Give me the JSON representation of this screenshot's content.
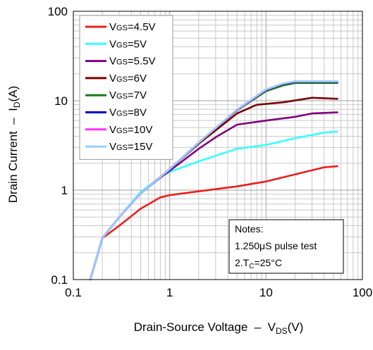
{
  "chart_data": {
    "type": "line",
    "xscale": "log",
    "yscale": "log",
    "xlim": [
      0.1,
      100
    ],
    "ylim": [
      0.1,
      100
    ],
    "grid": true,
    "legend_position": "top-left",
    "xlabel": {
      "main": "Drain-Source Voltage  –  V",
      "sub": "DS",
      "end": "(V)"
    },
    "ylabel": {
      "main": "Drain Current  –  I",
      "sub": "D",
      "end": "(A)"
    },
    "x_ticks": [
      {
        "value": 0.1,
        "label": "0.1"
      },
      {
        "value": 1,
        "label": "1"
      },
      {
        "value": 10,
        "label": "10"
      },
      {
        "value": 100,
        "label": "100"
      }
    ],
    "y_ticks": [
      {
        "value": 0.1,
        "label": "0.1"
      },
      {
        "value": 1,
        "label": "1"
      },
      {
        "value": 10,
        "label": "10"
      },
      {
        "value": 100,
        "label": "100"
      }
    ],
    "notes": {
      "line1": "Notes:",
      "line2": "1.250μS pulse test",
      "line3_pre": "2.T",
      "line3_sub": "C",
      "line3_post": "=25°C"
    },
    "series": [
      {
        "name": "VGS=4.5V",
        "prefix": "V",
        "sub": "GS",
        "suffix": "=4.5V",
        "color": "#ee1c1c",
        "x": [
          0.15,
          0.2,
          0.3,
          0.5,
          0.8,
          1,
          2,
          5,
          10,
          20,
          40,
          55
        ],
        "y": [
          0.1,
          0.29,
          0.4,
          0.62,
          0.83,
          0.88,
          0.97,
          1.1,
          1.25,
          1.5,
          1.8,
          1.85
        ]
      },
      {
        "name": "VGS=5V",
        "prefix": "V",
        "sub": "GS",
        "suffix": "=5V",
        "color": "#33ffff",
        "x": [
          0.15,
          0.2,
          0.3,
          0.5,
          0.8,
          1,
          2,
          5,
          10,
          20,
          40,
          55
        ],
        "y": [
          0.1,
          0.29,
          0.5,
          0.95,
          1.4,
          1.6,
          2.1,
          2.9,
          3.2,
          3.8,
          4.4,
          4.5
        ]
      },
      {
        "name": "VGS=5.5V",
        "prefix": "V",
        "sub": "GS",
        "suffix": "=5.5V",
        "color": "#800080",
        "x": [
          0.15,
          0.2,
          0.3,
          0.5,
          0.8,
          1,
          2,
          3,
          5,
          10,
          20,
          30,
          55
        ],
        "y": [
          0.1,
          0.29,
          0.5,
          0.92,
          1.38,
          1.65,
          2.9,
          3.9,
          5.4,
          6.0,
          6.6,
          7.2,
          7.4
        ]
      },
      {
        "name": "VGS=6V",
        "prefix": "V",
        "sub": "GS",
        "suffix": "=6V",
        "color": "#7a0000",
        "x": [
          0.15,
          0.2,
          0.3,
          0.5,
          0.8,
          1,
          2,
          5,
          8,
          15,
          30,
          55
        ],
        "y": [
          0.1,
          0.29,
          0.5,
          0.92,
          1.4,
          1.72,
          3.3,
          7.2,
          9.0,
          9.6,
          10.8,
          10.5
        ]
      },
      {
        "name": "VGS=7V",
        "prefix": "V",
        "sub": "GS",
        "suffix": "=7V",
        "color": "#1a7a1a",
        "x": [
          0.15,
          0.2,
          0.3,
          0.5,
          0.8,
          1,
          2,
          5,
          10,
          15,
          20,
          55
        ],
        "y": [
          0.1,
          0.29,
          0.5,
          0.92,
          1.4,
          1.72,
          3.4,
          7.8,
          12.8,
          14.8,
          15.8,
          15.8
        ]
      },
      {
        "name": "VGS=8V",
        "prefix": "V",
        "sub": "GS",
        "suffix": "=8V",
        "color": "#0000cc",
        "x": [
          0.15,
          0.2,
          0.3,
          0.5,
          0.8,
          1,
          2,
          5,
          10,
          15,
          20,
          55
        ],
        "y": [
          0.1,
          0.29,
          0.5,
          0.92,
          1.4,
          1.72,
          3.4,
          7.9,
          13.2,
          15.4,
          16.3,
          16.3
        ]
      },
      {
        "name": "VGS=10V",
        "prefix": "V",
        "sub": "GS",
        "suffix": "=10V",
        "color": "#ff33ff",
        "x": [
          0.15,
          0.2,
          0.3,
          0.5,
          0.8,
          1,
          2,
          5,
          10,
          15,
          20,
          55
        ],
        "y": [
          0.1,
          0.29,
          0.5,
          0.92,
          1.4,
          1.72,
          3.4,
          7.9,
          13.3,
          15.5,
          16.4,
          16.4
        ]
      },
      {
        "name": "VGS=15V",
        "prefix": "V",
        "sub": "GS",
        "suffix": "=15V",
        "color": "#99ccff",
        "x": [
          0.15,
          0.2,
          0.3,
          0.5,
          0.8,
          1,
          2,
          5,
          10,
          15,
          20,
          55
        ],
        "y": [
          0.1,
          0.29,
          0.5,
          0.92,
          1.4,
          1.72,
          3.4,
          8.0,
          13.4,
          15.6,
          16.5,
          16.5
        ]
      }
    ]
  }
}
